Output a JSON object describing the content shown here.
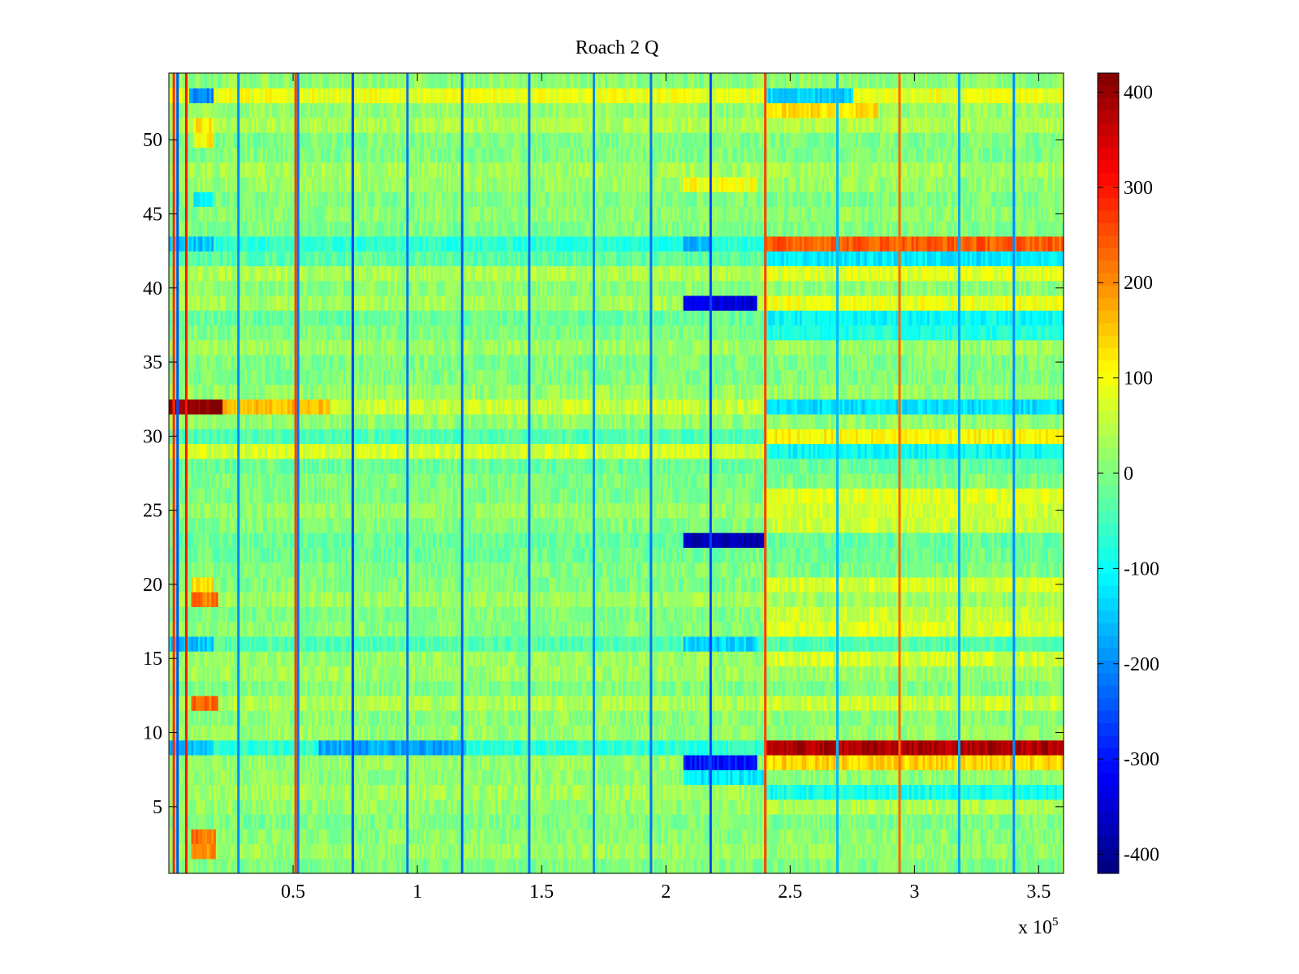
{
  "chart_data": {
    "type": "heatmap",
    "title": "Roach 2 Q",
    "xlabel": "",
    "ylabel": "",
    "x_exponent_label": "x 10",
    "x_exponent_power": "5",
    "xlim": [
      0,
      3.6
    ],
    "ylim": [
      0.5,
      54.5
    ],
    "x_ticks": [
      0.5,
      1,
      1.5,
      2,
      2.5,
      3,
      3.5
    ],
    "x_tick_labels": [
      "0.5",
      "1",
      "1.5",
      "2",
      "2.5",
      "3",
      "3.5"
    ],
    "y_ticks": [
      5,
      10,
      15,
      20,
      25,
      30,
      35,
      40,
      45,
      50
    ],
    "y_tick_labels": [
      "5",
      "10",
      "15",
      "20",
      "25",
      "30",
      "35",
      "40",
      "45",
      "50"
    ],
    "rows": 54,
    "colorbar": {
      "colormap": "jet",
      "clim": [
        -420,
        420
      ],
      "ticks": [
        400,
        300,
        200,
        100,
        0,
        -100,
        -200,
        -300,
        -400
      ],
      "tick_labels": [
        "400",
        "300",
        "200",
        "100",
        "0",
        "-100",
        "-200",
        "-300",
        "-400"
      ]
    },
    "background_value": 0,
    "row_offsets": [
      {
        "row": 1,
        "value": 0
      },
      {
        "row": 2,
        "value": 20
      },
      {
        "row": 3,
        "value": 10
      },
      {
        "row": 4,
        "value": 0
      },
      {
        "row": 5,
        "value": 15
      },
      {
        "row": 6,
        "value": 30
      },
      {
        "row": 7,
        "value": 10
      },
      {
        "row": 8,
        "value": 20
      },
      {
        "row": 9,
        "value": -70
      },
      {
        "row": 10,
        "value": 20
      },
      {
        "row": 11,
        "value": 10
      },
      {
        "row": 12,
        "value": 40
      },
      {
        "row": 14,
        "value": 25
      },
      {
        "row": 15,
        "value": 20
      },
      {
        "row": 16,
        "value": -40
      },
      {
        "row": 17,
        "value": 10
      },
      {
        "row": 19,
        "value": 25
      },
      {
        "row": 22,
        "value": -15
      },
      {
        "row": 23,
        "value": -20
      },
      {
        "row": 25,
        "value": 20
      },
      {
        "row": 28,
        "value": -20
      },
      {
        "row": 29,
        "value": 70
      },
      {
        "row": 30,
        "value": -40
      },
      {
        "row": 31,
        "value": 15
      },
      {
        "row": 32,
        "value": 60
      },
      {
        "row": 33,
        "value": 20
      },
      {
        "row": 36,
        "value": 25
      },
      {
        "row": 38,
        "value": -20
      },
      {
        "row": 39,
        "value": 30
      },
      {
        "row": 40,
        "value": 10
      },
      {
        "row": 41,
        "value": 40
      },
      {
        "row": 42,
        "value": -30
      },
      {
        "row": 43,
        "value": -70
      },
      {
        "row": 45,
        "value": 10
      },
      {
        "row": 47,
        "value": 20
      },
      {
        "row": 48,
        "value": 30
      },
      {
        "row": 51,
        "value": 40
      },
      {
        "row": 52,
        "value": 20
      },
      {
        "row": 53,
        "value": 90
      },
      {
        "row": 54,
        "value": 10
      }
    ],
    "blocks": [
      {
        "row": 32,
        "x_start": 0,
        "x_end": 0.22,
        "value": 410
      },
      {
        "row": 32,
        "x_start": 0.22,
        "x_end": 0.65,
        "value": 160
      },
      {
        "row": 32,
        "x_start": 2.4,
        "x_end": 3.6,
        "value": -130
      },
      {
        "row": 43,
        "x_start": 2.4,
        "x_end": 3.6,
        "value": 240
      },
      {
        "row": 42,
        "x_start": 2.4,
        "x_end": 3.6,
        "value": -120
      },
      {
        "row": 41,
        "x_start": 2.4,
        "x_end": 3.6,
        "value": 80
      },
      {
        "row": 39,
        "x_start": 2.4,
        "x_end": 3.6,
        "value": 90
      },
      {
        "row": 39,
        "x_start": 2.07,
        "x_end": 2.37,
        "value": -340
      },
      {
        "row": 38,
        "x_start": 2.4,
        "x_end": 3.6,
        "value": -100
      },
      {
        "row": 37,
        "x_start": 2.4,
        "x_end": 3.6,
        "value": -80
      },
      {
        "row": 30,
        "x_start": 2.4,
        "x_end": 3.6,
        "value": 110
      },
      {
        "row": 29,
        "x_start": 2.4,
        "x_end": 3.6,
        "value": -100
      },
      {
        "row": 23,
        "x_start": 2.07,
        "x_end": 2.4,
        "value": -380
      },
      {
        "row": 9,
        "x_start": 2.4,
        "x_end": 3.6,
        "value": 380
      },
      {
        "row": 8,
        "x_start": 2.4,
        "x_end": 3.6,
        "value": 140
      },
      {
        "row": 8,
        "x_start": 2.07,
        "x_end": 2.37,
        "value": -300
      },
      {
        "row": 7,
        "x_start": 2.07,
        "x_end": 2.4,
        "value": -120
      },
      {
        "row": 6,
        "x_start": 2.4,
        "x_end": 3.6,
        "value": -90
      },
      {
        "row": 5,
        "x_start": 2.4,
        "x_end": 3.6,
        "value": 40
      },
      {
        "row": 26,
        "x_start": 2.4,
        "x_end": 3.6,
        "value": 80
      },
      {
        "row": 25,
        "x_start": 2.4,
        "x_end": 3.6,
        "value": 70
      },
      {
        "row": 24,
        "x_start": 2.4,
        "x_end": 3.6,
        "value": 60
      },
      {
        "row": 20,
        "x_start": 2.4,
        "x_end": 3.6,
        "value": 70
      },
      {
        "row": 18,
        "x_start": 2.4,
        "x_end": 3.6,
        "value": 60
      },
      {
        "row": 17,
        "x_start": 2.4,
        "x_end": 3.6,
        "value": 80
      },
      {
        "row": 15,
        "x_start": 2.4,
        "x_end": 3.6,
        "value": 70
      },
      {
        "row": 12,
        "x_start": 2.4,
        "x_end": 3.6,
        "value": 60
      },
      {
        "row": 53,
        "x_start": 0.08,
        "x_end": 0.18,
        "value": -200
      },
      {
        "row": 51,
        "x_start": 0.1,
        "x_end": 0.18,
        "value": 120
      },
      {
        "row": 50,
        "x_start": 0.1,
        "x_end": 0.18,
        "value": 110
      },
      {
        "row": 46,
        "x_start": 0.1,
        "x_end": 0.18,
        "value": -120
      },
      {
        "row": 43,
        "x_start": 0.0,
        "x_end": 0.18,
        "value": -150
      },
      {
        "row": 19,
        "x_start": 0.09,
        "x_end": 0.2,
        "value": 220
      },
      {
        "row": 20,
        "x_start": 0.09,
        "x_end": 0.18,
        "value": 130
      },
      {
        "row": 16,
        "x_start": 0.0,
        "x_end": 0.18,
        "value": -150
      },
      {
        "row": 12,
        "x_start": 0.09,
        "x_end": 0.2,
        "value": 230
      },
      {
        "row": 9,
        "x_start": 0.0,
        "x_end": 0.18,
        "value": -160
      },
      {
        "row": 9,
        "x_start": 0.6,
        "x_end": 1.2,
        "value": -180
      },
      {
        "row": 3,
        "x_start": 0.09,
        "x_end": 0.19,
        "value": 220
      },
      {
        "row": 2,
        "x_start": 0.09,
        "x_end": 0.19,
        "value": 200
      },
      {
        "row": 43,
        "x_start": 2.07,
        "x_end": 2.18,
        "value": -160
      },
      {
        "row": 47,
        "x_start": 2.07,
        "x_end": 2.37,
        "value": 100
      },
      {
        "row": 16,
        "x_start": 2.07,
        "x_end": 2.37,
        "value": -140
      },
      {
        "row": 53,
        "x_start": 2.4,
        "x_end": 2.75,
        "value": -140
      },
      {
        "row": 52,
        "x_start": 2.4,
        "x_end": 2.85,
        "value": 130
      }
    ],
    "vertical_lines": [
      {
        "x": 0.02,
        "value": 280
      },
      {
        "x": 0.035,
        "value": -250
      },
      {
        "x": 0.07,
        "value": 300
      },
      {
        "x": 0.28,
        "value": -200
      },
      {
        "x": 0.51,
        "value": 260
      },
      {
        "x": 0.52,
        "value": -220
      },
      {
        "x": 0.74,
        "value": -260
      },
      {
        "x": 0.96,
        "value": -220
      },
      {
        "x": 1.18,
        "value": -240
      },
      {
        "x": 1.45,
        "value": -220
      },
      {
        "x": 1.71,
        "value": -200
      },
      {
        "x": 1.94,
        "value": -220
      },
      {
        "x": 2.18,
        "value": -260
      },
      {
        "x": 2.4,
        "value": 260
      },
      {
        "x": 2.69,
        "value": -160
      },
      {
        "x": 2.94,
        "value": 230
      },
      {
        "x": 3.18,
        "value": -180
      },
      {
        "x": 3.4,
        "value": -200
      }
    ],
    "noise_amplitude": 35
  }
}
